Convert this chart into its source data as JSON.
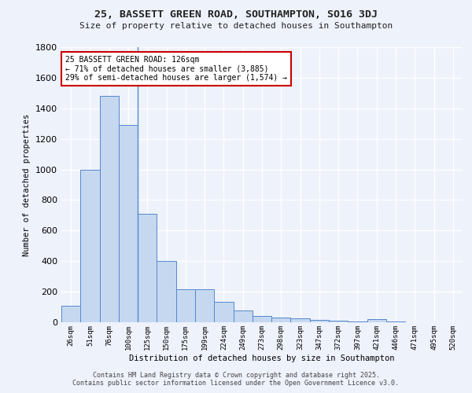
{
  "title_line1": "25, BASSETT GREEN ROAD, SOUTHAMPTON, SO16 3DJ",
  "title_line2": "Size of property relative to detached houses in Southampton",
  "xlabel": "Distribution of detached houses by size in Southampton",
  "ylabel": "Number of detached properties",
  "categories": [
    "26sqm",
    "51sqm",
    "76sqm",
    "100sqm",
    "125sqm",
    "150sqm",
    "175sqm",
    "199sqm",
    "224sqm",
    "249sqm",
    "273sqm",
    "298sqm",
    "323sqm",
    "347sqm",
    "372sqm",
    "397sqm",
    "421sqm",
    "446sqm",
    "471sqm",
    "495sqm",
    "520sqm"
  ],
  "values": [
    110,
    1000,
    1480,
    1290,
    710,
    400,
    215,
    215,
    135,
    75,
    40,
    30,
    25,
    15,
    10,
    5,
    20,
    5,
    0,
    0,
    0
  ],
  "bar_color": "#c5d8f0",
  "bar_edge_color": "#5588cc",
  "annotation_text": "25 BASSETT GREEN ROAD: 126sqm\n← 71% of detached houses are smaller (3,885)\n29% of semi-detached houses are larger (1,574) →",
  "annotation_box_color": "#ffffff",
  "annotation_box_edge": "#cc0000",
  "ylim": [
    0,
    1800
  ],
  "yticks": [
    0,
    200,
    400,
    600,
    800,
    1000,
    1200,
    1400,
    1600,
    1800
  ],
  "bg_color": "#eef2fb",
  "grid_color": "#ffffff",
  "footnote": "Contains HM Land Registry data © Crown copyright and database right 2025.\nContains public sector information licensed under the Open Government Licence v3.0."
}
